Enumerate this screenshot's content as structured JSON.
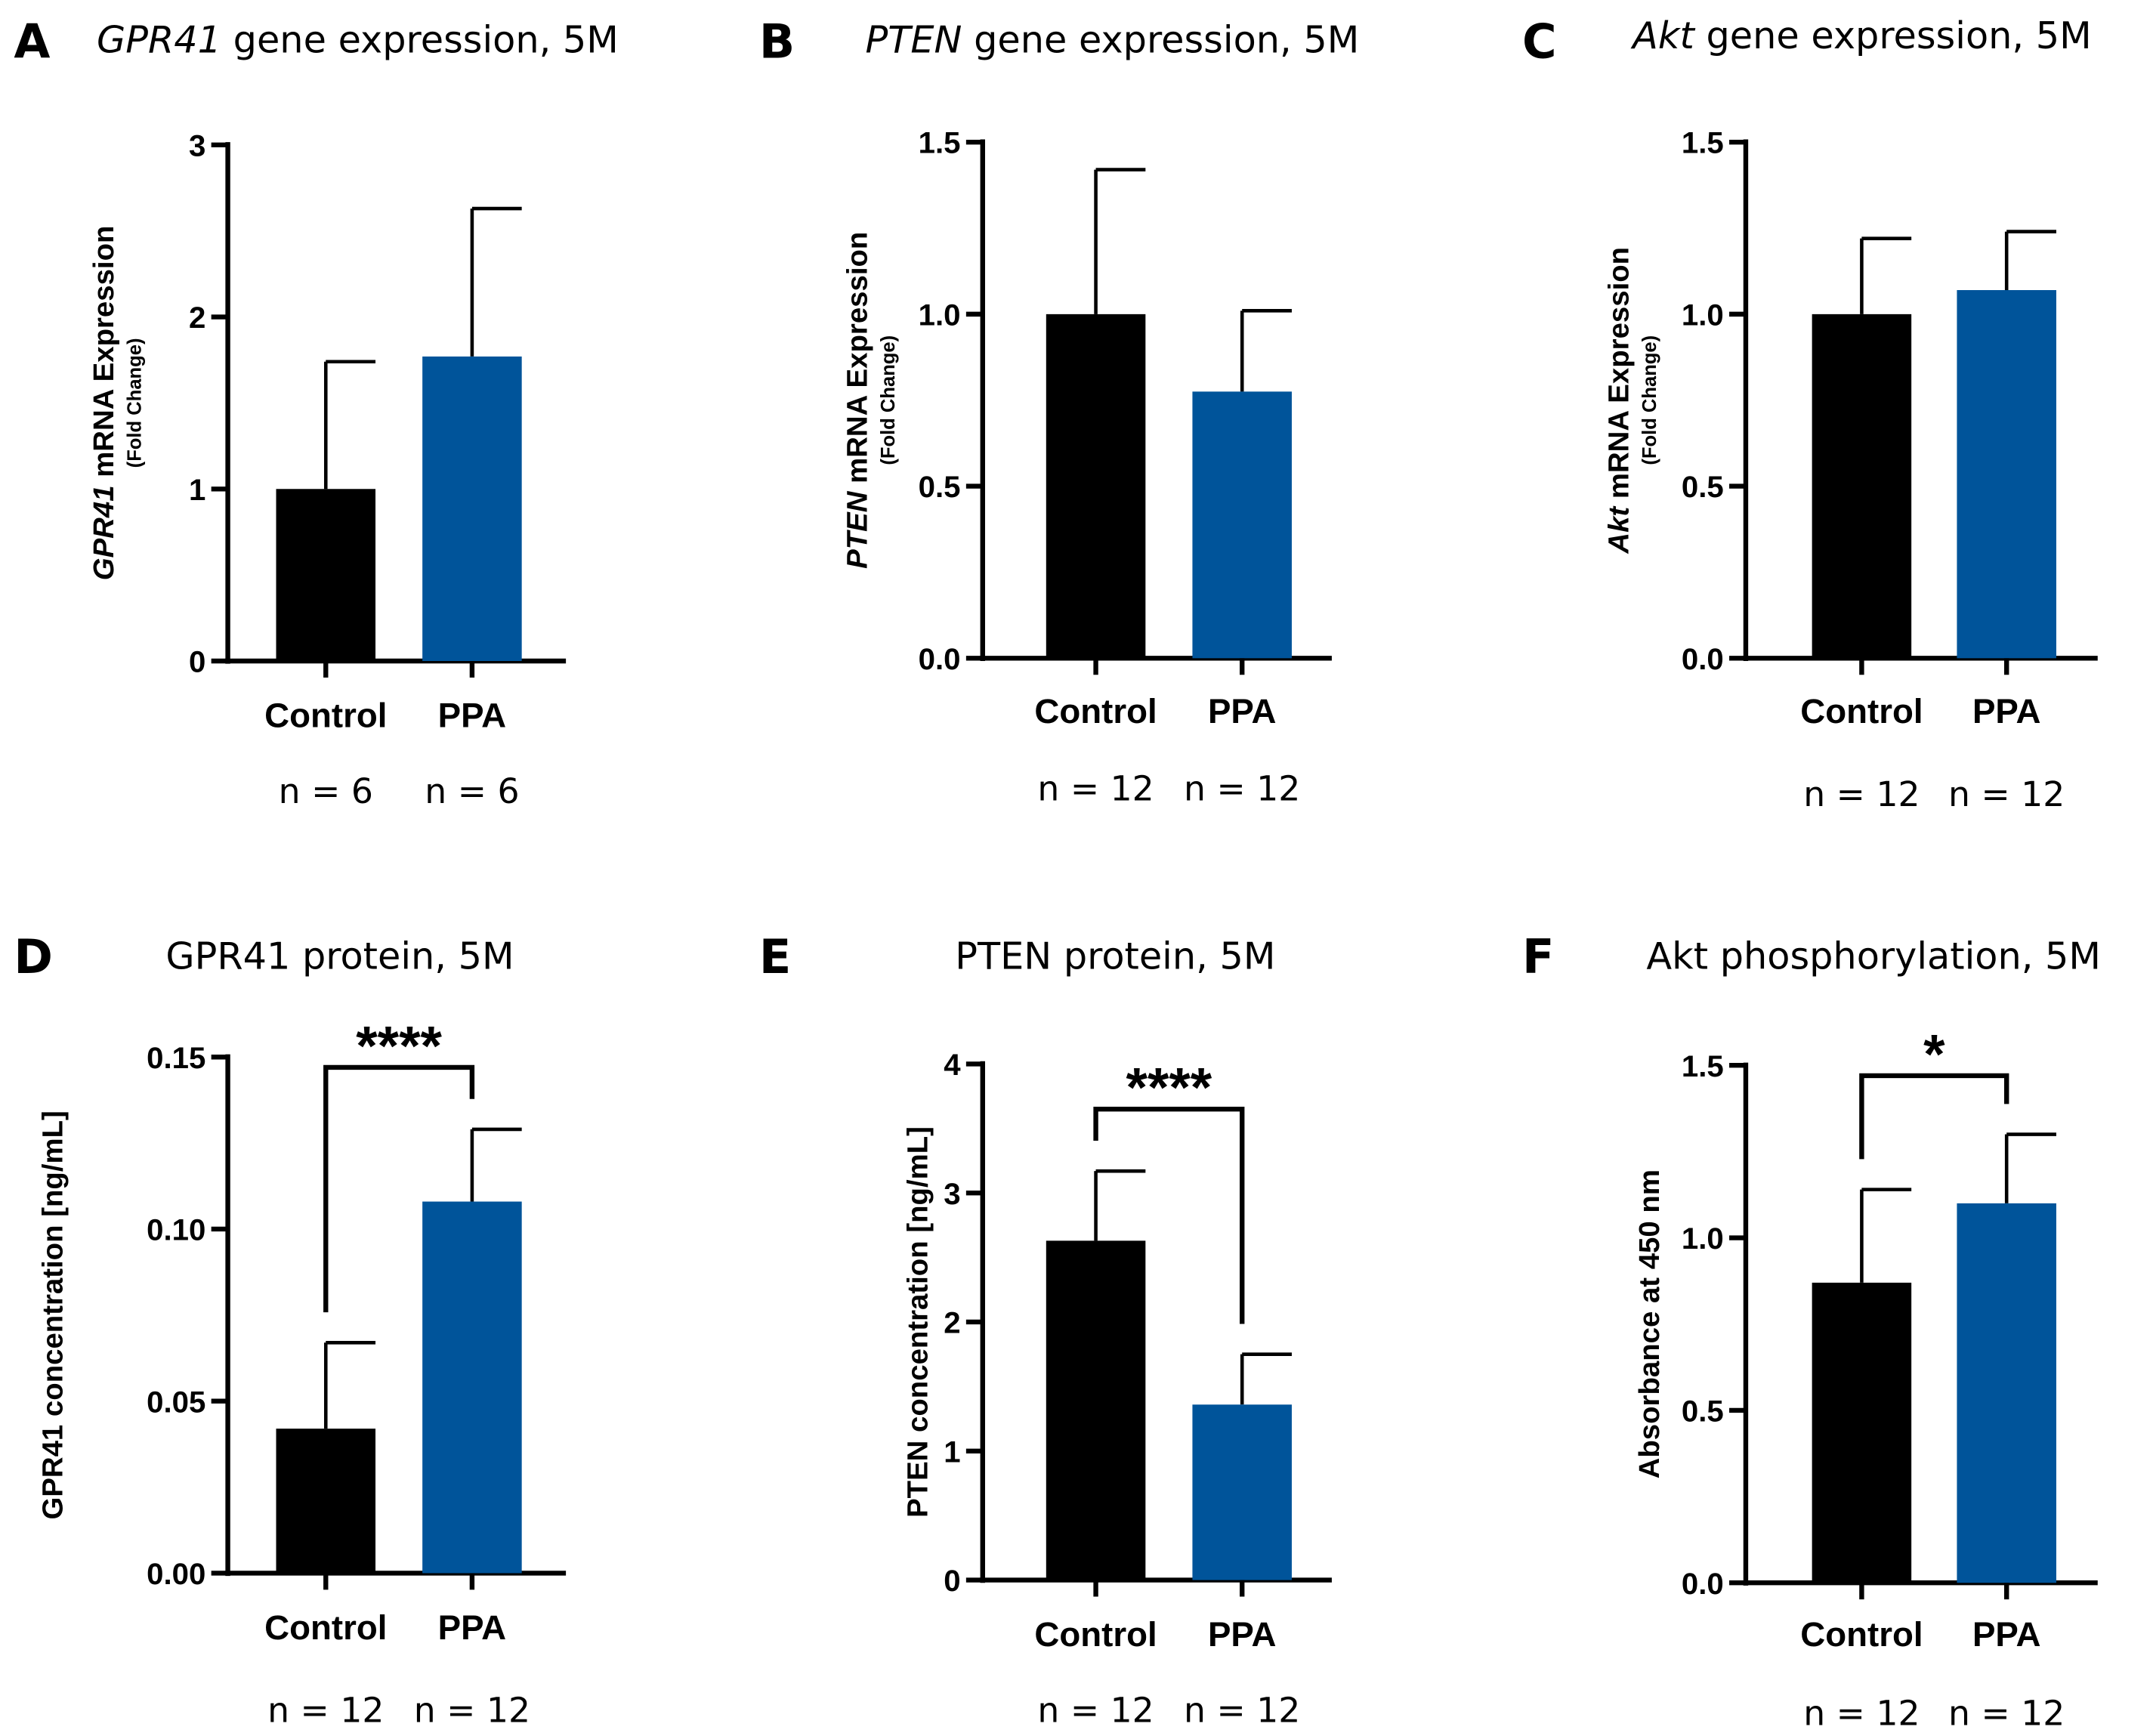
{
  "chart_data": [
    {
      "panel": "A",
      "type": "bar",
      "title_italic": "GPR41",
      "title_rest": " gene expression, 5M",
      "ylabel_italic": "GPR41",
      "ylabel_rest": " mRNA Expression",
      "ylabel_sub": "(Fold Change)",
      "categories": [
        "Control",
        "PPA"
      ],
      "values": [
        1.0,
        1.77
      ],
      "error_upper": [
        1.74,
        2.63
      ],
      "n": [
        "n = 6",
        "n = 6"
      ],
      "ylim": [
        0,
        3
      ],
      "yticks": [
        0,
        1,
        2,
        3
      ],
      "ytick_labels": [
        "0",
        "1",
        "2",
        "3"
      ],
      "significance": ""
    },
    {
      "panel": "B",
      "type": "bar",
      "title_italic": "PTEN",
      "title_rest": " gene expression, 5M",
      "ylabel_italic": "PTEN",
      "ylabel_rest": " mRNA Expression",
      "ylabel_sub": "(Fold Change)",
      "categories": [
        "Control",
        "PPA"
      ],
      "values": [
        1.0,
        0.775
      ],
      "error_upper": [
        1.42,
        1.01
      ],
      "n": [
        "n = 12",
        "n = 12"
      ],
      "ylim": [
        0,
        1.5
      ],
      "yticks": [
        0,
        0.5,
        1,
        1.5
      ],
      "ytick_labels": [
        "0.0",
        "0.5",
        "1.0",
        "1.5"
      ],
      "significance": ""
    },
    {
      "panel": "C",
      "type": "bar",
      "title_italic": "Akt",
      "title_rest": " gene expression, 5M",
      "ylabel_italic": "Akt",
      "ylabel_rest": " mRNA Expression",
      "ylabel_sub": "(Fold Change)",
      "categories": [
        "Control",
        "PPA"
      ],
      "values": [
        1.0,
        1.07
      ],
      "error_upper": [
        1.22,
        1.24
      ],
      "n": [
        "n = 12",
        "n = 12"
      ],
      "ylim": [
        0,
        1.5
      ],
      "yticks": [
        0,
        0.5,
        1,
        1.5
      ],
      "ytick_labels": [
        "0.0",
        "0.5",
        "1.0",
        "1.5"
      ],
      "significance": ""
    },
    {
      "panel": "D",
      "type": "bar",
      "title_italic": "",
      "title_rest": "GPR41 protein, 5M",
      "ylabel_italic": "",
      "ylabel_rest": "GPR41 concentration [ng/mL]",
      "ylabel_sub": "",
      "categories": [
        "Control",
        "PPA"
      ],
      "values": [
        0.042,
        0.108
      ],
      "error_upper": [
        0.067,
        0.129
      ],
      "n": [
        "n = 12",
        "n = 12"
      ],
      "ylim": [
        0,
        0.15
      ],
      "yticks": [
        0,
        0.05,
        0.1,
        0.15
      ],
      "ytick_labels": [
        "0.00",
        "0.05",
        "0.10",
        "0.15"
      ],
      "significance": "****",
      "bracket_level": 0.147
    },
    {
      "panel": "E",
      "type": "bar",
      "title_italic": "",
      "title_rest": "PTEN protein, 5M",
      "ylabel_italic": "",
      "ylabel_rest": "PTEN concentration [ng/mL]",
      "ylabel_sub": "",
      "categories": [
        "Control",
        "PPA"
      ],
      "values": [
        2.63,
        1.36
      ],
      "error_upper": [
        3.17,
        1.75
      ],
      "n": [
        "n = 12",
        "n = 12"
      ],
      "ylim": [
        0,
        4
      ],
      "yticks": [
        0,
        1,
        2,
        3,
        4
      ],
      "ytick_labels": [
        "0",
        "1",
        "2",
        "3",
        "4"
      ],
      "significance": "****",
      "bracket_level": 3.65
    },
    {
      "panel": "F",
      "type": "bar",
      "title_italic": "",
      "title_rest": "Akt phosphorylation, 5M",
      "ylabel_italic": "",
      "ylabel_rest": "Absorbance at 450 nm",
      "ylabel_sub": "",
      "categories": [
        "Control",
        "PPA"
      ],
      "values": [
        0.87,
        1.1
      ],
      "error_upper": [
        1.14,
        1.3
      ],
      "n": [
        "n = 12",
        "n = 12"
      ],
      "ylim": [
        0,
        1.5
      ],
      "yticks": [
        0,
        0.5,
        1,
        1.5
      ],
      "ytick_labels": [
        "0.0",
        "0.5",
        "1.0",
        "1.5"
      ],
      "significance": "*",
      "bracket_level": 1.47
    }
  ],
  "colors": {
    "control": "#000000",
    "ppa": "#00549a"
  }
}
